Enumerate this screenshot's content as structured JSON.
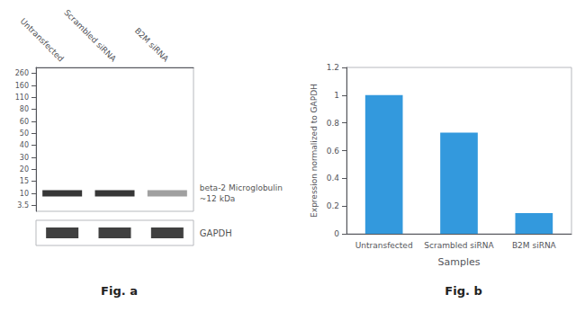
{
  "chart_data": [
    {
      "type": "blot",
      "title": "Fig. a",
      "categories": [
        "Untransfected",
        "Scrambled siRNA",
        "B2M siRNA"
      ],
      "yticks": [
        260,
        160,
        110,
        80,
        60,
        50,
        40,
        30,
        20,
        15,
        10,
        3.5
      ],
      "values": [
        10,
        10,
        10
      ],
      "colors": [
        "#050505",
        "#050505",
        "#888888"
      ],
      "annotation": "beta-2 Microglobulin\n~12 kDa",
      "grid": false
    },
    {
      "type": "blot",
      "title": "GAPDH",
      "categories": [
        null,
        null,
        null
      ],
      "color": "#101010",
      "tick_labels": false,
      "grid": false
    },
    {
      "type": "bar",
      "title": "Fig. b",
      "categories": [
        "Untransfected",
        "Scrambled siRNA",
        "B2M siRNA"
      ],
      "values": [
        1.0,
        0.73,
        0.15
      ],
      "color": "#3399dd",
      "xlabel": "Samples",
      "ylabel": "Expression normalized to GAPDH",
      "ylim": [
        0,
        1.2
      ],
      "yticks": [
        0,
        0.2,
        0.4,
        0.6,
        0.8,
        1,
        1.2
      ],
      "grid": false
    }
  ]
}
